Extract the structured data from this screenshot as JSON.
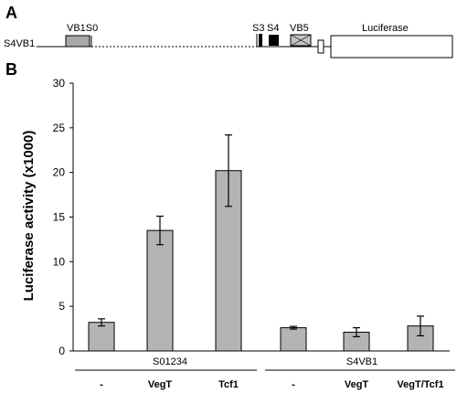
{
  "panel_a": {
    "letter": "A",
    "construct_label": "S4VB1",
    "elements": {
      "vb1s0": "VB1S0",
      "s3": "S3",
      "s4": "S4",
      "vb5": "VB5",
      "luciferase": "Luciferase"
    }
  },
  "panel_b": {
    "letter": "B"
  },
  "colors": {
    "bar_fill": "#b4b4b4",
    "stroke": "#000000"
  },
  "chart_data": {
    "type": "bar",
    "ylabel": "Luciferase activity (x1000)",
    "ylim": [
      0,
      30
    ],
    "yticks": [
      "0",
      "5",
      "10",
      "15",
      "20",
      "25",
      "30"
    ],
    "grid": false,
    "categories": [
      "-",
      "VegT",
      "Tcf1",
      "-",
      "VegT",
      "VegT/Tcf1"
    ],
    "groups": [
      {
        "name": "S01234",
        "indices": [
          0,
          1,
          2
        ]
      },
      {
        "name": "S4VB1",
        "indices": [
          3,
          4,
          5
        ]
      }
    ],
    "values": [
      3.2,
      13.5,
      20.2,
      2.6,
      2.1,
      2.8
    ],
    "errors": [
      0.4,
      1.6,
      4.0,
      0.15,
      0.5,
      1.1
    ]
  }
}
